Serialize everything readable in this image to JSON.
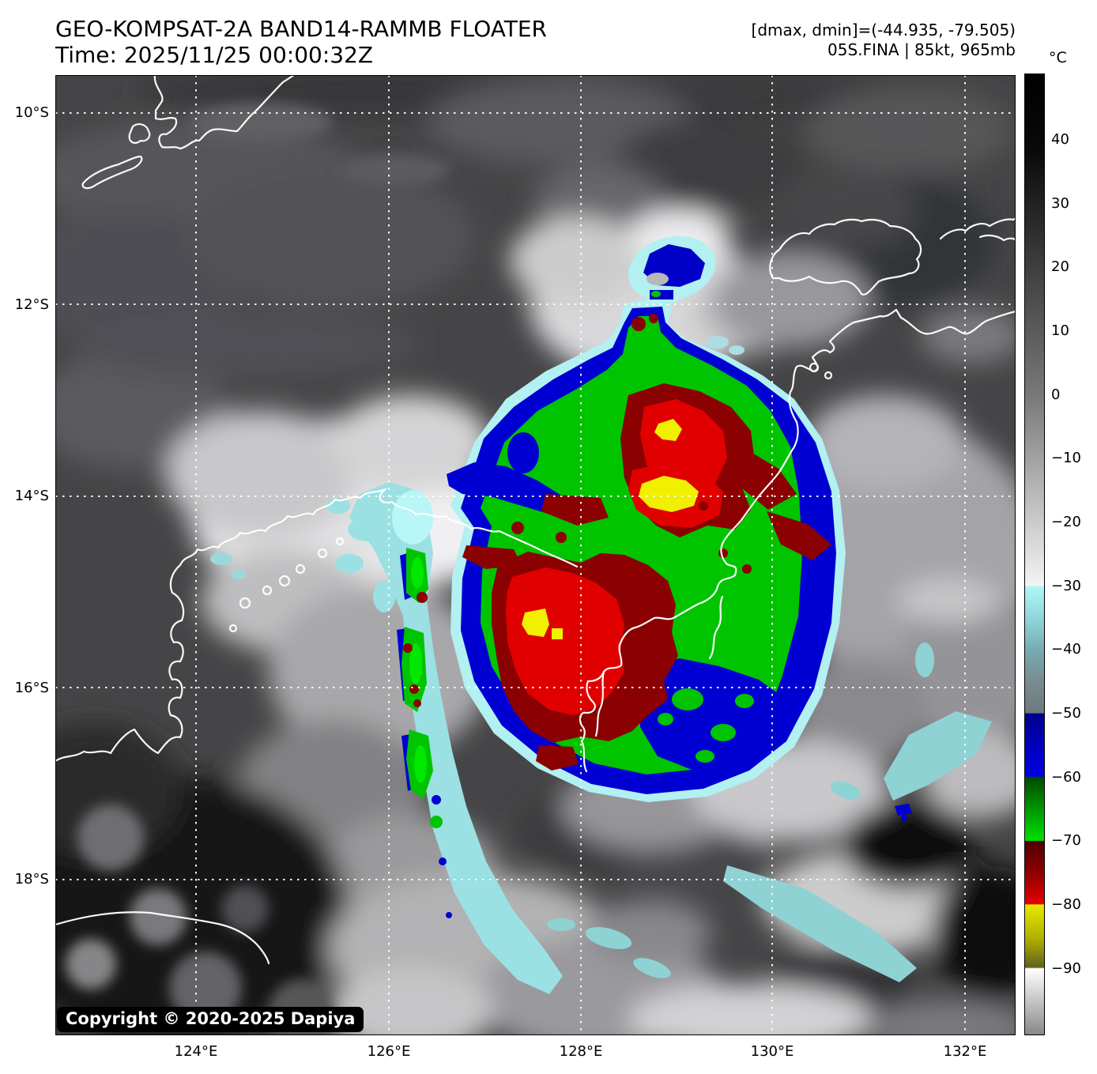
{
  "header": {
    "title": "GEO-KOMPSAT-2A BAND14-RAMMB FLOATER",
    "time_line": "Time: 2025/11/25 00:00:32Z",
    "dmax_dmin_line": "[dmax, dmin]=(-44.935, -79.505)",
    "storm_line": "05S.FINA | 85kt, 965mb"
  },
  "map": {
    "lat_labels": [
      "10°S",
      "12°S",
      "14°S",
      "16°S",
      "18°S"
    ],
    "lon_labels": [
      "124°E",
      "126°E",
      "128°E",
      "130°E",
      "132°E"
    ],
    "copyright": "Copyright © 2020-2025 Dapiya"
  },
  "colorbar": {
    "unit": "°C",
    "ticks": [
      "40",
      "30",
      "20",
      "10",
      "0",
      "−10",
      "−20",
      "−30",
      "−40",
      "−50",
      "−60",
      "−70",
      "−80",
      "−90"
    ],
    "range": {
      "top_c": 50,
      "bottom_c": -100
    },
    "segment_colors": {
      "warm_gray": [
        "#000000",
        "#f4f4f4"
      ],
      "cyan_band": [
        "#aef6f8",
        "#6e797c"
      ],
      "blue_band": [
        "#00008b",
        "#0000e8"
      ],
      "green_band": [
        "#004b00",
        "#00e000"
      ],
      "red_band": [
        "#4f0000",
        "#e60000"
      ],
      "yellow_band": [
        "#e8e800",
        "#62621e"
      ],
      "cold_gray": [
        "#ffffff",
        "#888888"
      ]
    }
  }
}
